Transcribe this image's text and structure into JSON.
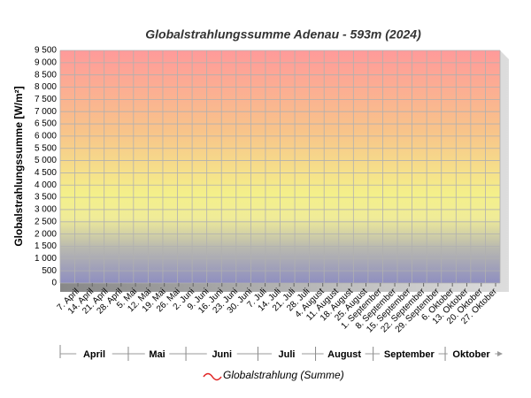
{
  "chart_data": {
    "type": "line",
    "title": "Globalstrahlungssumme Adenau - 593m (2024)",
    "y_label": "Globalstrahlungssumme [W/m²]",
    "categories": [
      "7. April",
      "14. April",
      "21. April",
      "28. April",
      "5. Mai",
      "12. Mai",
      "19. Mai",
      "26. Mai",
      "2. Juni",
      "9. Juni",
      "16. Juni",
      "23. Juni",
      "30. Juni",
      "7. Juli",
      "14. Juli",
      "21. Juli",
      "28. Juli",
      "4. August",
      "11. August",
      "18. August",
      "25. August",
      "1. September",
      "8. September",
      "15. September",
      "22. September",
      "29. September",
      "6. Oktober",
      "13. Oktober",
      "20. Oktober",
      "27. Oktober"
    ],
    "months": [
      "April",
      "Mai",
      "Juni",
      "Juli",
      "August",
      "September",
      "Oktober"
    ],
    "series": [
      {
        "name": "Globalstrahlung (Summe)",
        "color": "#e02020",
        "values": [
          null,
          null,
          null,
          null,
          null,
          null,
          null,
          null,
          null,
          null,
          null,
          null,
          null,
          null,
          null,
          null,
          null,
          null,
          null,
          null,
          null,
          null,
          null,
          null,
          null,
          null,
          null,
          null,
          null,
          null
        ]
      }
    ],
    "ylim": [
      0,
      9500
    ],
    "yticks": [
      0,
      500,
      {
        "value": 1000,
        "label": "1 000"
      },
      {
        "value": 1500,
        "label": "1 500"
      },
      {
        "value": 2000,
        "label": "2 000"
      },
      {
        "value": 2500,
        "label": "2 500"
      },
      {
        "value": 3000,
        "label": "3 000"
      },
      {
        "value": 3500,
        "label": "3 500"
      },
      {
        "value": 4000,
        "label": "4 000"
      },
      {
        "value": 4500,
        "label": "4 500"
      },
      {
        "value": 5000,
        "label": "5 000"
      },
      {
        "value": 5500,
        "label": "5 500"
      },
      {
        "value": 6000,
        "label": "6 000"
      },
      {
        "value": 6500,
        "label": "6 500"
      },
      {
        "value": 7000,
        "label": "7 000"
      },
      {
        "value": 7500,
        "label": "7 500"
      },
      {
        "value": 8000,
        "label": "8 000"
      },
      {
        "value": 8500,
        "label": "8 500"
      },
      {
        "value": 9000,
        "label": "9 000"
      },
      {
        "value": 9500,
        "label": "9 500"
      }
    ],
    "grid": true
  }
}
